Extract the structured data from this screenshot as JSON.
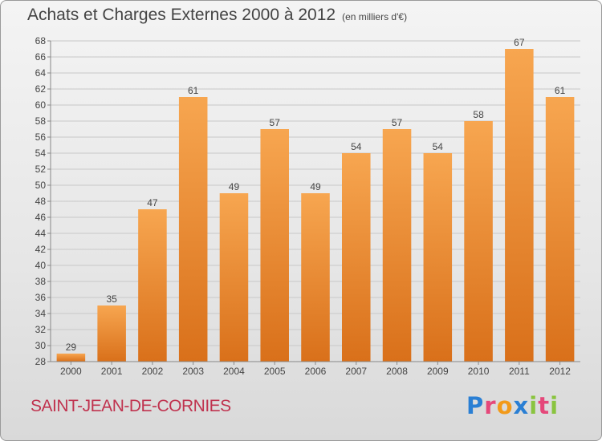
{
  "title": "Achats et Charges Externes 2000 à 2012",
  "unit": "(en milliers d'€)",
  "commune": "SAINT-JEAN-DE-CORNIES",
  "logo": [
    "P",
    "r",
    "o",
    "x",
    "i",
    "t",
    "i"
  ],
  "colors": {
    "bar_light": "#f7a650",
    "bar_dark": "#e07a20",
    "title": "#444444",
    "commune": "#c0334f"
  },
  "chart_data": {
    "type": "bar",
    "categories": [
      "2000",
      "2001",
      "2002",
      "2003",
      "2004",
      "2005",
      "2006",
      "2007",
      "2008",
      "2009",
      "2010",
      "2011",
      "2012"
    ],
    "values": [
      29,
      35,
      47,
      61,
      49,
      57,
      49,
      54,
      57,
      54,
      58,
      67,
      61
    ],
    "ylim": [
      28,
      68
    ],
    "yticks": [
      28,
      30,
      32,
      34,
      36,
      38,
      40,
      42,
      44,
      46,
      48,
      50,
      52,
      54,
      56,
      58,
      60,
      62,
      64,
      66,
      68
    ],
    "grid": true,
    "xlabel": "",
    "ylabel": ""
  }
}
